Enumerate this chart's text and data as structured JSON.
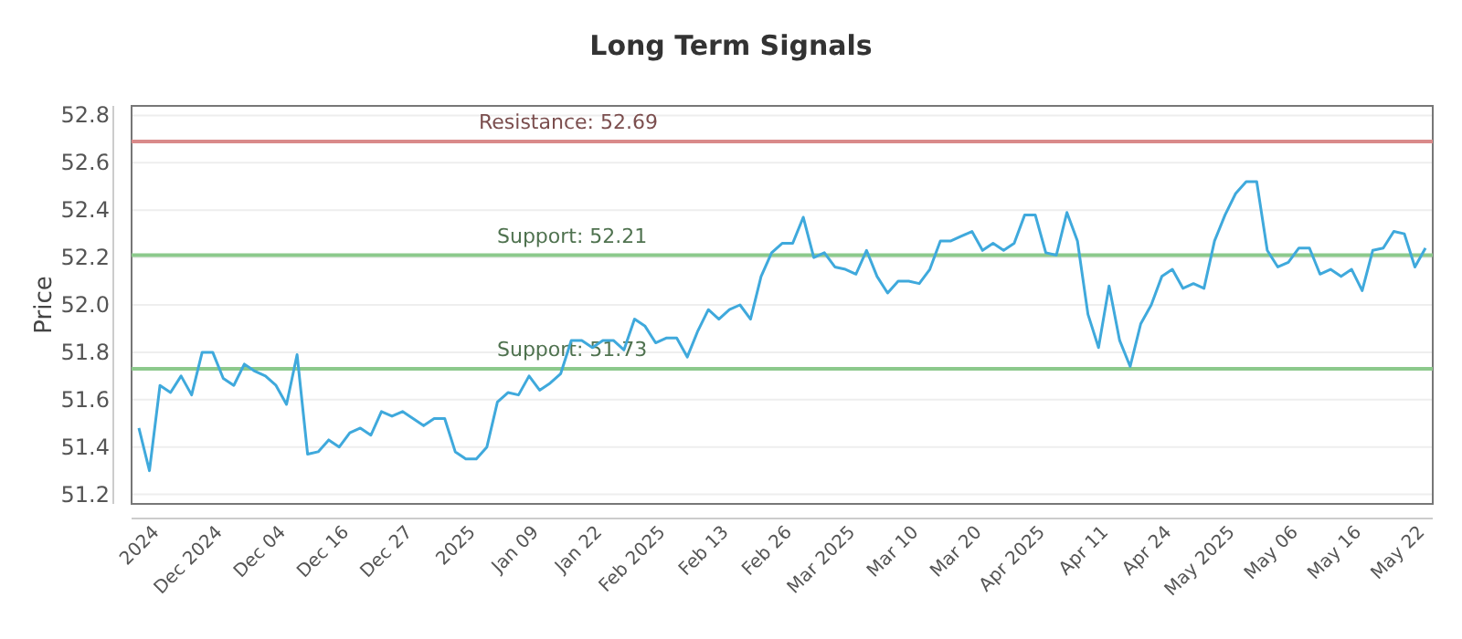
{
  "chart_data": {
    "type": "line",
    "title": "Long Term Signals",
    "ylabel": "Price",
    "categories": [
      null,
      null,
      "2024",
      null,
      null,
      null,
      null,
      null,
      "Dec 2024",
      null,
      null,
      null,
      null,
      null,
      "Dec 04",
      null,
      null,
      null,
      null,
      null,
      "Dec 16",
      null,
      null,
      null,
      null,
      null,
      "Dec 27",
      null,
      null,
      null,
      null,
      null,
      "2025",
      null,
      null,
      null,
      null,
      null,
      "Jan 09",
      null,
      null,
      null,
      null,
      null,
      "Jan 22",
      null,
      null,
      null,
      null,
      null,
      "Feb 2025",
      null,
      null,
      null,
      null,
      null,
      "Feb 13",
      null,
      null,
      null,
      null,
      null,
      "Feb 26",
      null,
      null,
      null,
      null,
      null,
      "Mar 2025",
      null,
      null,
      null,
      null,
      null,
      "Mar 10",
      null,
      null,
      null,
      null,
      null,
      "Mar 20",
      null,
      null,
      null,
      null,
      null,
      "Apr 2025",
      null,
      null,
      null,
      null,
      null,
      "Apr 11",
      null,
      null,
      null,
      null,
      null,
      "Apr 24",
      null,
      null,
      null,
      null,
      null,
      "May 2025",
      null,
      null,
      null,
      null,
      null,
      "May 06",
      null,
      null,
      null,
      null,
      null,
      "May 16",
      null,
      null,
      null,
      null,
      null,
      "May 22"
    ],
    "series": [
      {
        "color": "#3fa9dc",
        "values": [
          51.48,
          51.3,
          51.66,
          51.63,
          51.7,
          51.62,
          51.8,
          51.8,
          51.69,
          51.66,
          51.75,
          51.72,
          51.7,
          51.66,
          51.58,
          51.79,
          51.37,
          51.38,
          51.43,
          51.4,
          51.46,
          51.48,
          51.45,
          51.55,
          51.53,
          51.55,
          51.52,
          51.49,
          51.52,
          51.52,
          51.38,
          51.35,
          51.35,
          51.4,
          51.59,
          51.63,
          51.62,
          51.7,
          51.64,
          51.67,
          51.71,
          51.85,
          51.85,
          51.82,
          51.85,
          51.85,
          51.81,
          51.94,
          51.91,
          51.84,
          51.86,
          51.86,
          51.78,
          51.89,
          51.98,
          51.94,
          51.98,
          52.0,
          51.94,
          52.12,
          52.22,
          52.26,
          52.26,
          52.37,
          52.2,
          52.22,
          52.16,
          52.15,
          52.13,
          52.23,
          52.12,
          52.05,
          52.1,
          52.1,
          52.09,
          52.15,
          52.27,
          52.27,
          52.29,
          52.31,
          52.23,
          52.26,
          52.23,
          52.26,
          52.38,
          52.38,
          52.22,
          52.21,
          52.39,
          52.27,
          51.96,
          51.82,
          52.08,
          51.85,
          51.74,
          51.92,
          52.0,
          52.12,
          52.15,
          52.07,
          52.09,
          52.07,
          52.27,
          52.38,
          52.47,
          52.52,
          52.52,
          52.23,
          52.16,
          52.18,
          52.24,
          52.24,
          52.13,
          52.15,
          52.12,
          52.15,
          52.06,
          52.23,
          52.24,
          52.31,
          52.3,
          52.16,
          52.24
        ]
      }
    ],
    "ylim": [
      51.16,
      52.84
    ],
    "yticks": [
      51.2,
      51.4,
      51.6,
      51.8,
      {
        "value": 52,
        "label": "52.0"
      },
      52.2,
      52.4,
      52.6,
      52.8
    ],
    "grid": "y",
    "ref_lines": [
      {
        "axis": "y",
        "value": 52.69,
        "label": "Resistance: 52.69",
        "color": "#d98a8a"
      },
      {
        "axis": "y",
        "value": 52.21,
        "label": "Support: 52.21",
        "color": "#8cc98c"
      },
      {
        "axis": "y",
        "value": 51.73,
        "label": "Support: 51.73",
        "color": "#8cc98c"
      }
    ]
  }
}
